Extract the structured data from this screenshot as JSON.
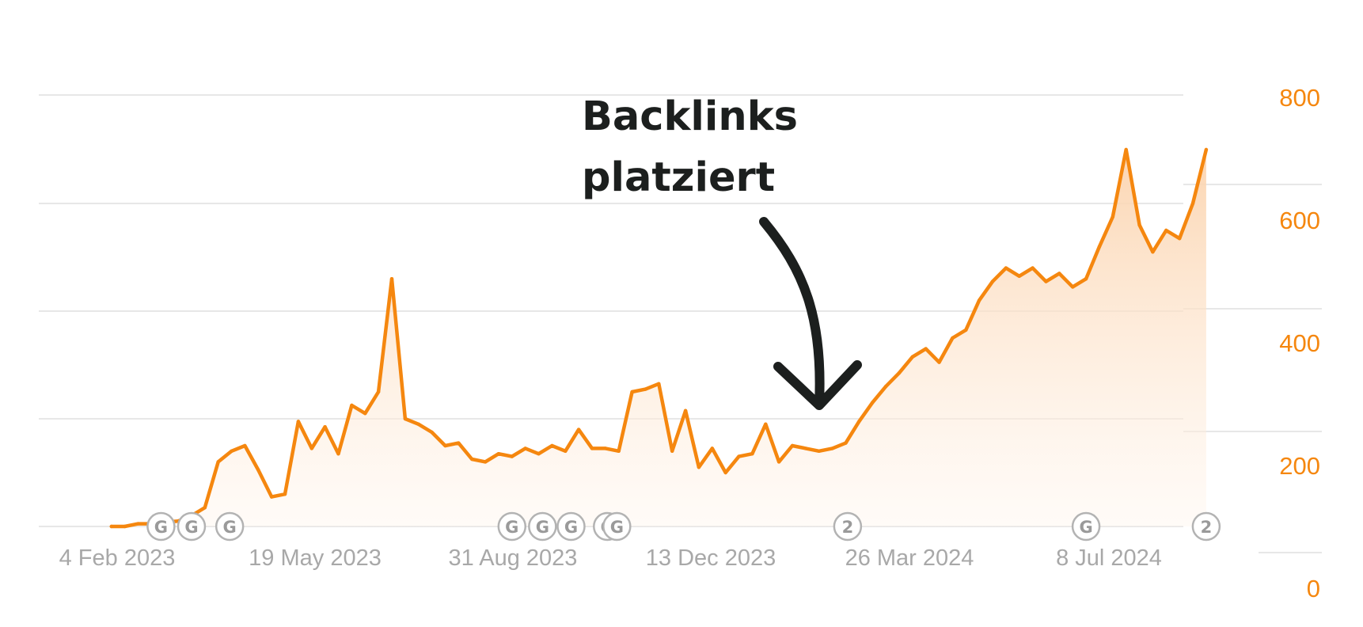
{
  "chart_data": {
    "type": "area",
    "title": "",
    "xlabel": "",
    "ylabel": "",
    "ylim": [
      0,
      800
    ],
    "grid": true,
    "legend": "none",
    "colors": {
      "line": "#f5870f",
      "fill": "#fde3cc",
      "grid": "#e7e7e7",
      "x_ticks": "#a8a8a8",
      "y_ticks": "#f5870f",
      "annotation": "#1c1f1e"
    },
    "x_ticks": [
      "4 Feb 2023",
      "19 May 2023",
      "31 Aug 2023",
      "13 Dec 2023",
      "26 Mar 2024",
      "8 Jul 2024"
    ],
    "y_ticks": [
      0,
      200,
      400,
      600,
      800
    ],
    "series": [
      {
        "x": [
          "2023-02-01",
          "2023-02-08",
          "2023-02-15",
          "2023-02-22",
          "2023-03-01",
          "2023-03-08",
          "2023-03-15",
          "2023-03-22",
          "2023-03-29",
          "2023-04-05",
          "2023-04-12",
          "2023-04-19",
          "2023-04-26",
          "2023-05-03",
          "2023-05-10",
          "2023-05-17",
          "2023-05-24",
          "2023-05-31",
          "2023-06-07",
          "2023-06-14",
          "2023-06-21",
          "2023-06-28",
          "2023-07-05",
          "2023-07-12",
          "2023-07-19",
          "2023-07-26",
          "2023-08-02",
          "2023-08-09",
          "2023-08-16",
          "2023-08-23",
          "2023-08-30",
          "2023-09-06",
          "2023-09-13",
          "2023-09-20",
          "2023-09-27",
          "2023-10-04",
          "2023-10-11",
          "2023-10-18",
          "2023-10-25",
          "2023-11-01",
          "2023-11-08",
          "2023-11-15",
          "2023-11-22",
          "2023-11-29",
          "2023-12-06",
          "2023-12-13",
          "2023-12-20",
          "2023-12-27",
          "2024-01-03",
          "2024-01-10",
          "2024-01-17",
          "2024-01-24",
          "2024-01-31",
          "2024-02-07",
          "2024-02-14",
          "2024-02-21",
          "2024-02-28",
          "2024-03-06",
          "2024-03-13",
          "2024-03-20",
          "2024-03-27",
          "2024-04-03",
          "2024-04-10",
          "2024-04-17",
          "2024-04-24",
          "2024-05-01",
          "2024-05-08",
          "2024-05-15",
          "2024-05-22",
          "2024-05-29",
          "2024-06-05",
          "2024-06-12",
          "2024-06-19",
          "2024-06-26",
          "2024-07-03",
          "2024-07-10",
          "2024-07-17",
          "2024-07-24",
          "2024-07-31",
          "2024-08-07",
          "2024-08-14",
          "2024-08-21",
          "2024-08-28"
        ],
        "values": [
          0,
          0,
          5,
          5,
          8,
          10,
          20,
          35,
          120,
          140,
          150,
          105,
          55,
          60,
          195,
          145,
          185,
          135,
          225,
          210,
          250,
          460,
          200,
          190,
          175,
          150,
          155,
          125,
          120,
          135,
          130,
          145,
          135,
          150,
          140,
          180,
          145,
          145,
          140,
          250,
          255,
          265,
          140,
          215,
          110,
          145,
          100,
          130,
          135,
          190,
          120,
          150,
          145,
          140,
          145,
          155,
          195,
          230,
          260,
          285,
          315,
          330,
          305,
          350,
          365,
          420,
          455,
          480,
          465,
          480,
          455,
          470,
          445,
          460,
          520,
          575,
          700,
          560,
          510,
          550,
          535,
          600,
          700
        ]
      }
    ],
    "markers": [
      {
        "date": "2023-02-27",
        "label": "G"
      },
      {
        "date": "2023-03-15",
        "label": "G"
      },
      {
        "date": "2023-04-04",
        "label": "G"
      },
      {
        "date": "2023-08-30",
        "label": "G"
      },
      {
        "date": "2023-09-15",
        "label": "G"
      },
      {
        "date": "2023-09-30",
        "label": "G"
      },
      {
        "date": "2023-10-19",
        "label": "G"
      },
      {
        "date": "2023-10-24",
        "label": "G"
      },
      {
        "date": "2024-02-22",
        "label": "2"
      },
      {
        "date": "2024-06-26",
        "label": "G"
      },
      {
        "date": "2024-08-28",
        "label": "2"
      }
    ],
    "annotation": {
      "lines": [
        "Backlinks",
        "platziert"
      ],
      "target_date": "2024-01-21"
    }
  }
}
